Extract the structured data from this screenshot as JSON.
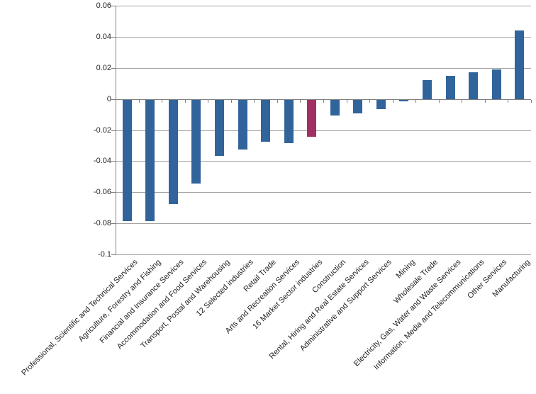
{
  "chart_data": {
    "type": "bar",
    "title": "",
    "xlabel": "",
    "ylabel": "",
    "grid": true,
    "legend": false,
    "ylim": [
      -0.1,
      0.06
    ],
    "ytick_step": 0.02,
    "ytick_values": [
      0.06,
      0.04,
      0.02,
      0,
      -0.02,
      -0.04,
      -0.06,
      -0.08,
      -0.1
    ],
    "ytick_labels": [
      "0.06",
      "0.04",
      "0.02",
      "0",
      "-0.02",
      "-0.04",
      "-0.06",
      "-0.08",
      "-0.1"
    ],
    "categories": [
      "Professional, Scientific and Technical Services",
      "Agriculture, Forestry and Fishing",
      "Financial and Insurance Services",
      "Accommodation and Food Services",
      "Transport, Postal and Warehousing",
      "12 Selected industries",
      "Retail Trade",
      "Arts and Recreation Services",
      "16 Market Sector industries",
      "Construction",
      "Rental, Hiring and Real Estate Services",
      "Administrative and Support Services",
      "Mining",
      "Wholesale Trade",
      "Electricity, Gas, Water and Waste Services",
      "Information, Media and Telecommunications",
      "Other Services",
      "Manufacturing"
    ],
    "values": [
      -0.078,
      -0.078,
      -0.067,
      -0.054,
      -0.036,
      -0.032,
      -0.027,
      -0.028,
      -0.024,
      -0.01,
      -0.009,
      -0.006,
      -0.001,
      0.012,
      0.015,
      0.017,
      0.019,
      0.044
    ],
    "highlight_index": 8,
    "bar_color": "#31649B",
    "highlight_color": "#9E3162",
    "gridline_color": "#A3A3A3",
    "axis_color": "#7F7F7F",
    "text_color": "#1F1F1F",
    "background_color": "#FFFFFF"
  }
}
